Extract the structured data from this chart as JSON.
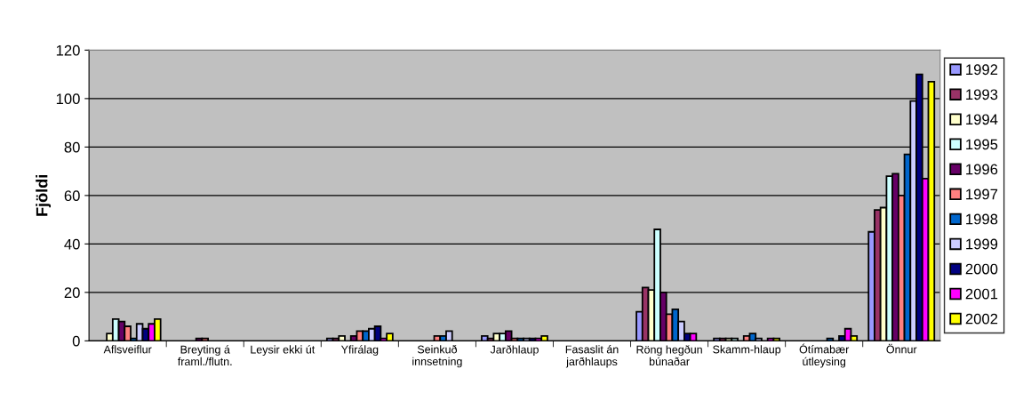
{
  "chart_data": {
    "type": "bar",
    "ylabel": "Fjöldi",
    "categories": [
      "Aflsveiflur",
      "Breyting á\nframl./flutn.",
      "Leysir ekki út",
      "Yfirálag",
      "Seinkuð\ninnsetning",
      "Jarðhlaup",
      "Fasaslit án\njarðhlaups",
      "Röng hegðun\nbúnaðar",
      "Skamm-hlaup",
      "Ótímabær\nútleysing",
      "Önnur"
    ],
    "series": [
      {
        "name": "1992",
        "color": "#9999ff",
        "values": [
          0,
          0,
          0,
          1,
          0,
          2,
          0,
          12,
          1,
          0,
          45
        ]
      },
      {
        "name": "1993",
        "color": "#993366",
        "values": [
          0,
          0,
          0,
          1,
          0,
          1,
          0,
          22,
          1,
          0,
          54
        ]
      },
      {
        "name": "1994",
        "color": "#ffffcc",
        "values": [
          3,
          0,
          0,
          2,
          0,
          3,
          0,
          21,
          1,
          0,
          55
        ]
      },
      {
        "name": "1995",
        "color": "#ccffff",
        "values": [
          9,
          0,
          0,
          0,
          0,
          3,
          0,
          46,
          1,
          0,
          68
        ]
      },
      {
        "name": "1996",
        "color": "#660066",
        "values": [
          8,
          1,
          0,
          2,
          0,
          4,
          0,
          20,
          0,
          0,
          69
        ]
      },
      {
        "name": "1997",
        "color": "#ff8080",
        "values": [
          6,
          1,
          0,
          4,
          2,
          1,
          0,
          11,
          2,
          0,
          60
        ]
      },
      {
        "name": "1998",
        "color": "#0066cc",
        "values": [
          1,
          0,
          0,
          4,
          2,
          1,
          0,
          13,
          3,
          1,
          77
        ]
      },
      {
        "name": "1999",
        "color": "#ccccff",
        "values": [
          7,
          0,
          0,
          5,
          4,
          1,
          0,
          8,
          1,
          0,
          99
        ]
      },
      {
        "name": "2000",
        "color": "#000080",
        "values": [
          5,
          0,
          0,
          6,
          0,
          1,
          0,
          3,
          0,
          2,
          110
        ]
      },
      {
        "name": "2001",
        "color": "#ff00ff",
        "values": [
          7,
          0,
          0,
          1,
          0,
          1,
          0,
          3,
          1,
          5,
          67
        ]
      },
      {
        "name": "2002",
        "color": "#ffff00",
        "values": [
          9,
          0,
          0,
          3,
          0,
          2,
          0,
          0,
          1,
          2,
          107
        ]
      }
    ],
    "ylim": [
      0,
      120
    ],
    "yticks": [
      0,
      20,
      40,
      60,
      80,
      100,
      120
    ],
    "grid": "y",
    "legend": "right"
  }
}
